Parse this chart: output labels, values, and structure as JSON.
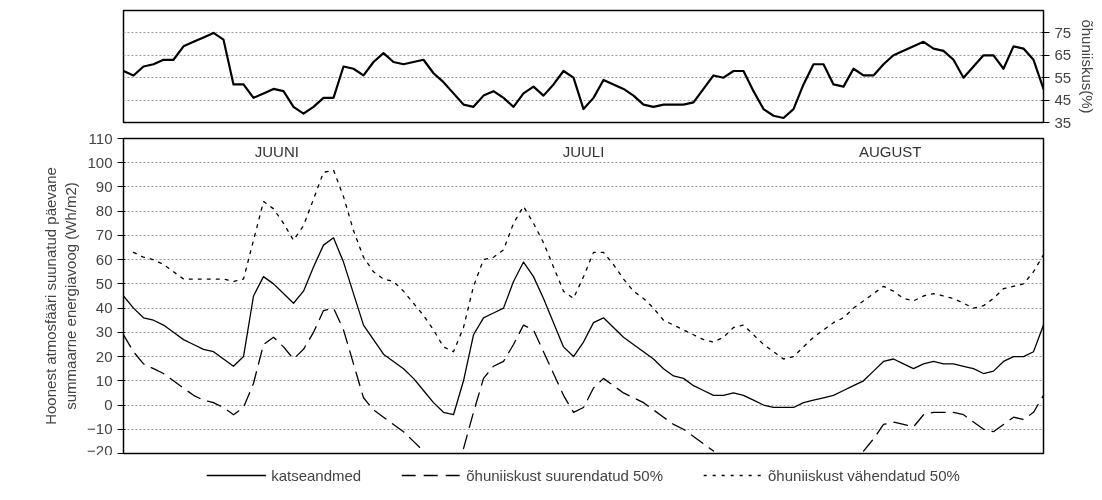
{
  "chart_data": [
    {
      "type": "line",
      "ylabel": "õhuniiskus(%)",
      "ylim": [
        35,
        85
      ],
      "yticks": [
        35,
        45,
        55,
        65,
        75
      ],
      "grid": "y",
      "tick_labels": "y",
      "categories": [
        null,
        null,
        null,
        null,
        null,
        null,
        null,
        null,
        null,
        null,
        null,
        null,
        null,
        null,
        null,
        null,
        null,
        null,
        null,
        null,
        null,
        null,
        null,
        null,
        null,
        null,
        null,
        null,
        null,
        null,
        null,
        null,
        null,
        null,
        null,
        null,
        null,
        null,
        null,
        null,
        null,
        null,
        null,
        null,
        null,
        null,
        null,
        null,
        null,
        null,
        null,
        null,
        null,
        null,
        null,
        null,
        null,
        null,
        null,
        null,
        null,
        null,
        null,
        null,
        null,
        null,
        null,
        null,
        null,
        null,
        null,
        null,
        null,
        null,
        null,
        null,
        null,
        null,
        null,
        null,
        null,
        null,
        null,
        null,
        null,
        null,
        null,
        null,
        null,
        null,
        null,
        null,
        null
      ],
      "series": [
        {
          "color": "#000000",
          "values": [
            58,
            56,
            60,
            61,
            63,
            63,
            69,
            71,
            73,
            75,
            72,
            52,
            52,
            46,
            48,
            50,
            49,
            42,
            39,
            42,
            46,
            46,
            60,
            59,
            56,
            62,
            66,
            62,
            61,
            62,
            63,
            57,
            53,
            48,
            43,
            42,
            47,
            49,
            46,
            42,
            48,
            51,
            47,
            52,
            58,
            55,
            41,
            46,
            54,
            52,
            50,
            47,
            43,
            42,
            43,
            43,
            43,
            44,
            50,
            56,
            55,
            58,
            58,
            49,
            41,
            38,
            37,
            41,
            52,
            61,
            61,
            52,
            51,
            59,
            56,
            56,
            61,
            65,
            67,
            69,
            71,
            68,
            67,
            63,
            55,
            60,
            65,
            65,
            59,
            69,
            68,
            63,
            50
          ]
        }
      ]
    },
    {
      "type": "line",
      "ylabel": "Hoonest atmosfääri suunatud päevane summaarne energiavoog (Wh/m2)",
      "ylim": [
        -20,
        110
      ],
      "yticks": [
        -20,
        -10,
        0,
        10,
        20,
        30,
        40,
        50,
        60,
        70,
        80,
        90,
        100,
        110
      ],
      "grid": "y",
      "tick_labels": "y",
      "legend": "bottom",
      "categories": [
        null,
        null,
        null,
        null,
        null,
        null,
        null,
        null,
        null,
        null,
        null,
        null,
        null,
        null,
        null,
        null,
        null,
        null,
        null,
        null,
        null,
        null,
        null,
        null,
        null,
        null,
        null,
        null,
        null,
        null,
        null,
        null,
        null,
        null,
        null,
        null,
        null,
        null,
        null,
        null,
        null,
        null,
        null,
        null,
        null,
        null,
        null,
        null,
        null,
        null,
        null,
        null,
        null,
        null,
        null,
        null,
        null,
        null,
        null,
        null,
        null,
        null,
        null,
        null,
        null,
        null,
        null,
        null,
        null,
        null,
        null,
        null,
        null,
        null,
        null,
        null,
        null,
        null,
        null,
        null,
        null,
        null,
        null,
        null,
        null,
        null,
        null,
        null,
        null,
        null,
        null,
        null,
        null
      ],
      "annotations": [
        "JUUNI",
        "JUULI",
        "AUGUST"
      ],
      "series": [
        {
          "name": "katseandmed",
          "color": "#000000",
          "line_style": "solid",
          "values": [
            45,
            40,
            36,
            35,
            33,
            30,
            27,
            25,
            23,
            22,
            19,
            16,
            20,
            45,
            53,
            50,
            46,
            42,
            47,
            57,
            66,
            69,
            59,
            46,
            33,
            27,
            21,
            18,
            15,
            11,
            6,
            1,
            -3,
            -4,
            10,
            29,
            36,
            38,
            40,
            51,
            59,
            53,
            44,
            34,
            24,
            20,
            26,
            34,
            36,
            32,
            28,
            25,
            22,
            19,
            15,
            12,
            11,
            8,
            6,
            4,
            4,
            5,
            4,
            2,
            0,
            -1,
            -1,
            -1,
            1,
            2,
            3,
            4,
            6,
            8,
            10,
            14,
            18,
            19,
            17,
            15,
            17,
            18,
            17,
            17,
            16,
            15,
            13,
            14,
            18,
            20,
            20,
            22,
            33
          ]
        },
        {
          "name": "õhuniiskust suurendatud 50%",
          "color": "#000000",
          "line_style": "dashed",
          "values": [
            29,
            22,
            17,
            15,
            13,
            10,
            7,
            4,
            2,
            1,
            -1,
            -4,
            -1,
            9,
            25,
            28,
            24,
            19,
            23,
            30,
            39,
            40,
            31,
            17,
            3,
            -2,
            -5,
            -8,
            -11,
            -15,
            -19,
            null,
            null,
            null,
            -18,
            -3,
            11,
            16,
            18,
            25,
            33,
            31,
            22,
            13,
            4,
            -3,
            -1,
            7,
            11,
            8,
            5,
            3,
            1,
            -2,
            -5,
            -8,
            -10,
            -13,
            -16,
            -19,
            null,
            null,
            null,
            null,
            null,
            null,
            null,
            null,
            null,
            null,
            null,
            null,
            null,
            null,
            -19,
            -14,
            -8,
            -7,
            -8,
            -9,
            -4,
            -3,
            -3,
            -3,
            -4,
            -7,
            -10,
            -11,
            -8,
            -5,
            -6,
            -3,
            4
          ]
        },
        {
          "name": "õhuniiskust vähendatud 50%",
          "color": "#000000",
          "line_style": "dotted",
          "values": [
            null,
            63,
            61,
            60,
            58,
            55,
            52,
            52,
            52,
            52,
            52,
            51,
            52,
            68,
            84,
            81,
            75,
            68,
            74,
            85,
            96,
            97,
            86,
            72,
            61,
            55,
            52,
            51,
            47,
            42,
            37,
            31,
            24,
            22,
            32,
            49,
            60,
            61,
            64,
            75,
            82,
            75,
            67,
            57,
            47,
            44,
            53,
            63,
            63,
            58,
            52,
            47,
            44,
            40,
            35,
            33,
            31,
            29,
            27,
            26,
            28,
            32,
            33,
            29,
            25,
            22,
            19,
            20,
            24,
            28,
            31,
            34,
            36,
            40,
            43,
            46,
            49,
            47,
            44,
            43,
            45,
            46,
            45,
            44,
            42,
            40,
            41,
            44,
            48,
            49,
            50,
            55,
            62
          ]
        }
      ]
    }
  ]
}
